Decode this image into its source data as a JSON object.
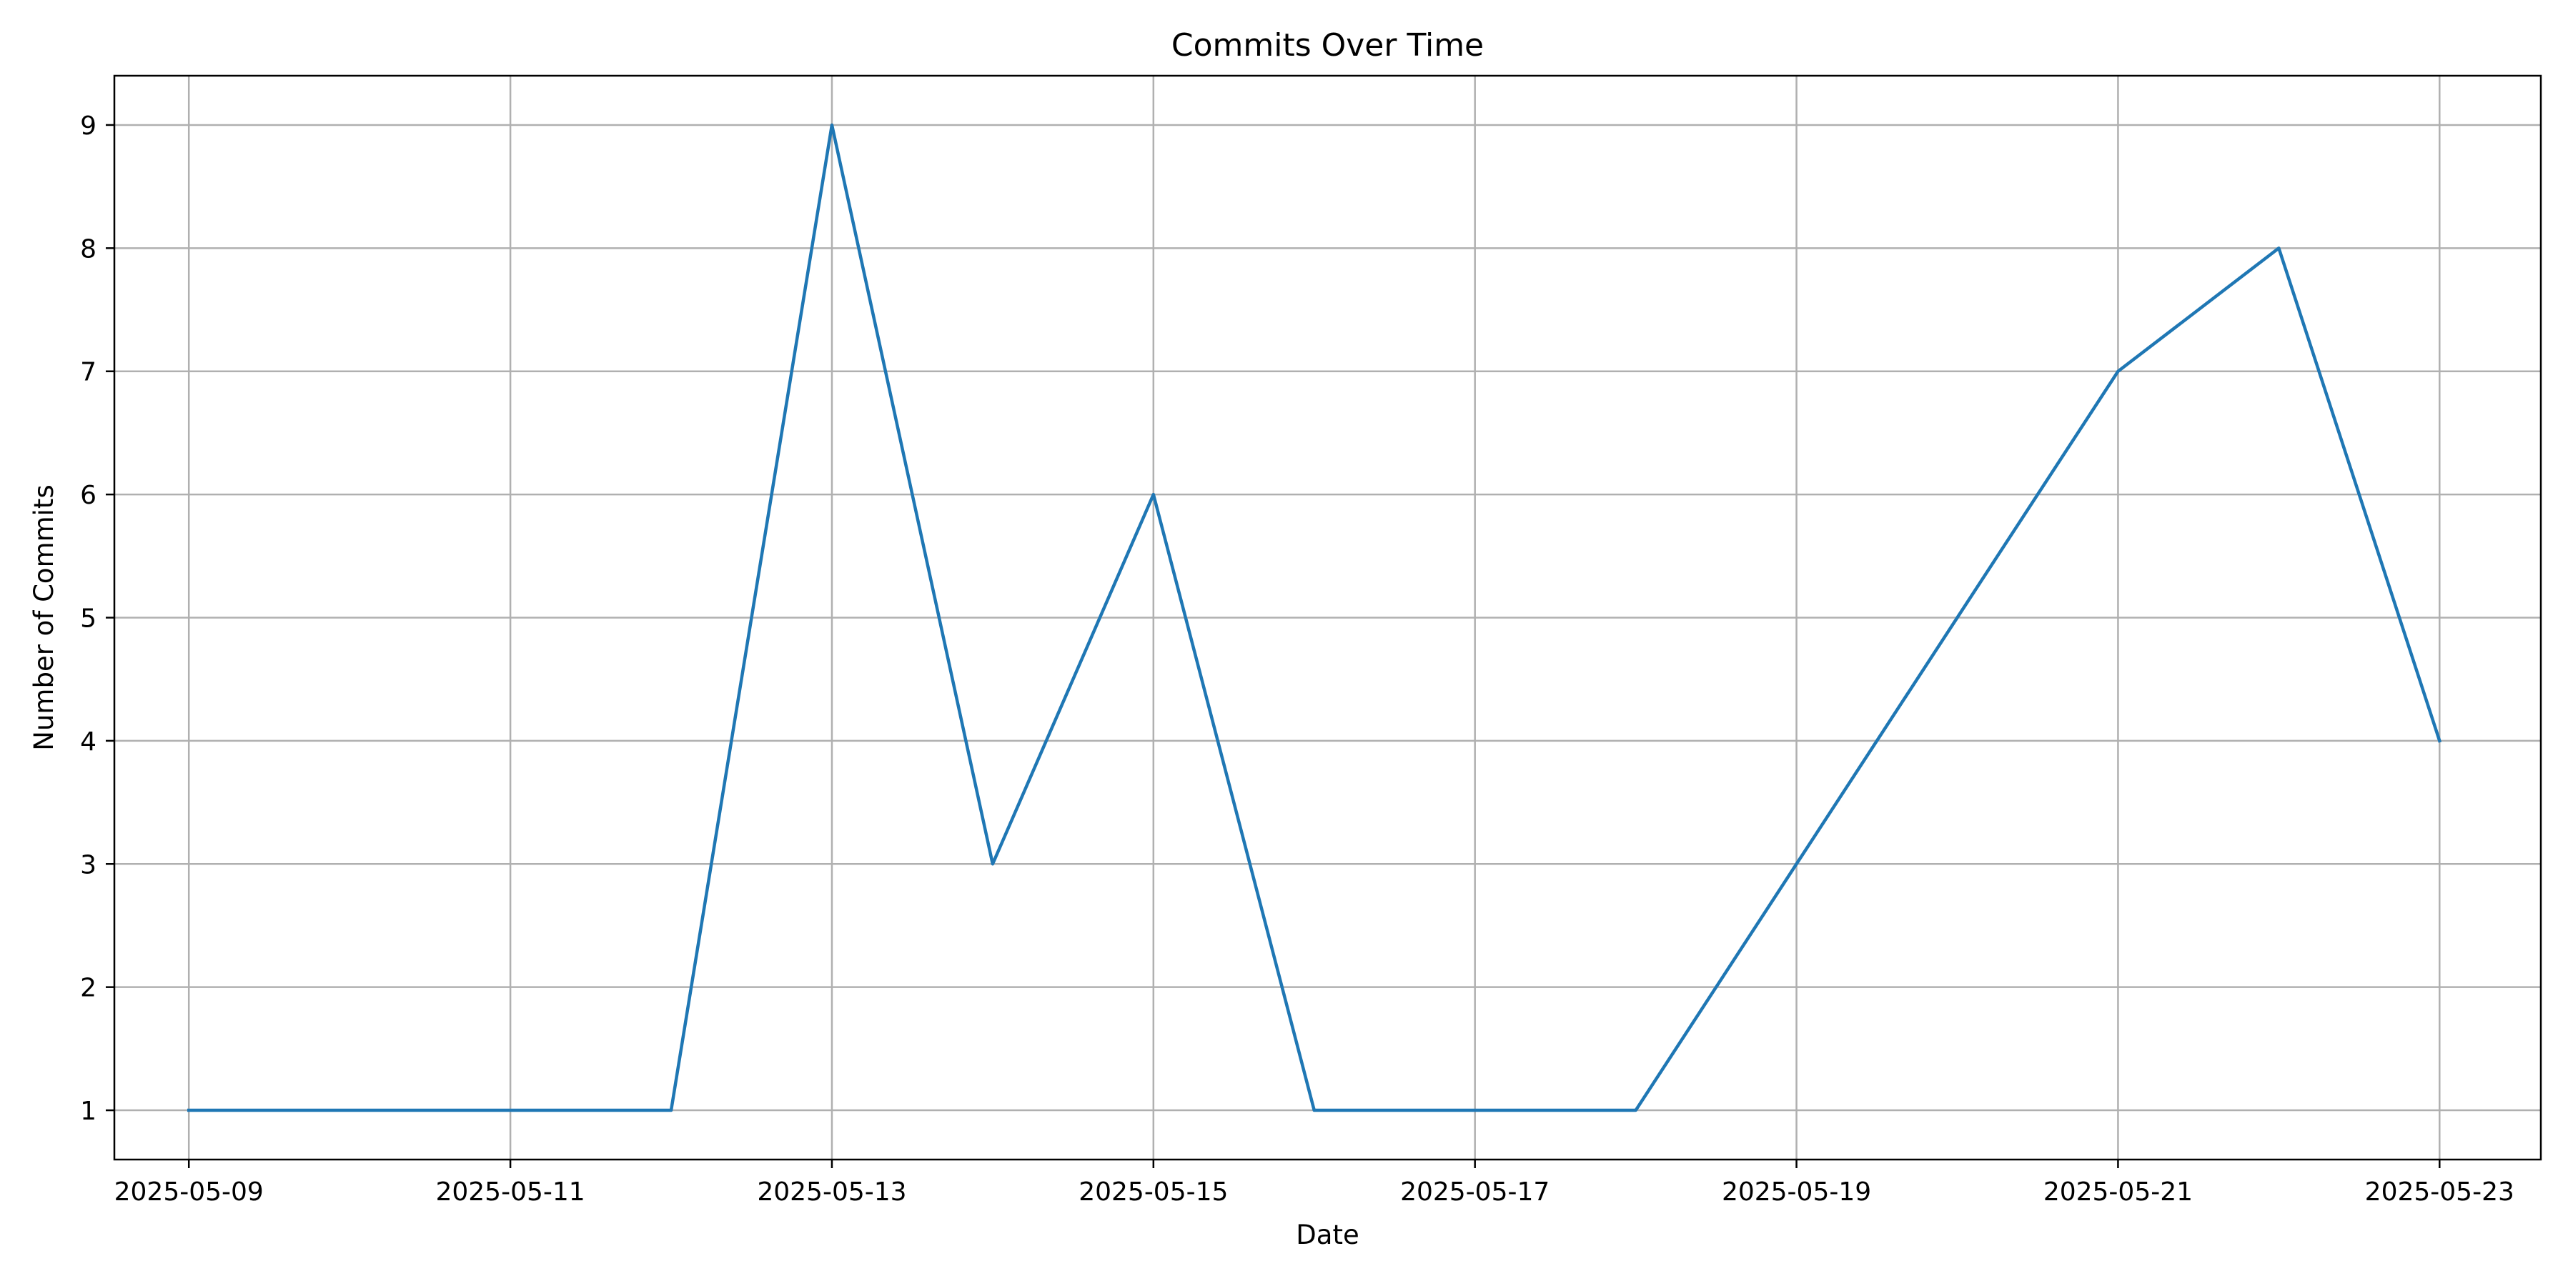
{
  "chart_data": {
    "type": "line",
    "title": "Commits Over Time",
    "xlabel": "Date",
    "ylabel": "Number of Commits",
    "x": [
      "2025-05-09",
      "2025-05-10",
      "2025-05-11",
      "2025-05-12",
      "2025-05-13",
      "2025-05-14",
      "2025-05-15",
      "2025-05-16",
      "2025-05-17",
      "2025-05-18",
      "2025-05-19",
      "2025-05-20",
      "2025-05-21",
      "2025-05-22",
      "2025-05-23"
    ],
    "series": [
      {
        "values": [
          1,
          1,
          1,
          1,
          9,
          3,
          6,
          1,
          1,
          1,
          3,
          5,
          7,
          8,
          4
        ]
      }
    ],
    "xticks": [
      "2025-05-09",
      "2025-05-11",
      "2025-05-13",
      "2025-05-15",
      "2025-05-17",
      "2025-05-19",
      "2025-05-21",
      "2025-05-23"
    ],
    "yticks": [
      1,
      2,
      3,
      4,
      5,
      6,
      7,
      8,
      9
    ],
    "xlim": [
      "2025-05-08T12:52:48",
      "2025-05-23T15:07:12"
    ],
    "ylim": [
      0.6,
      9.4
    ],
    "grid": true,
    "line_color": "#1f77b4",
    "grid_color": "#b0b0b0"
  }
}
